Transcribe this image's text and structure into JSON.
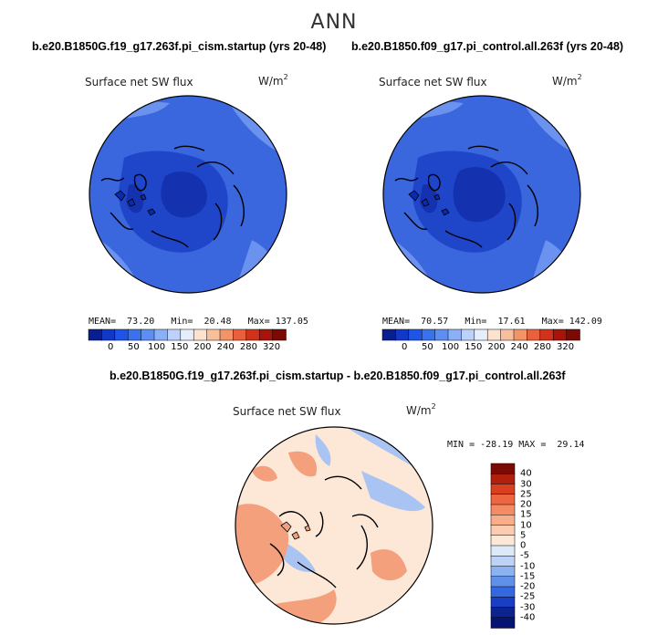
{
  "season": "ANN",
  "panels": [
    {
      "title": "b.e20.B1850G.f19_g17.263f.pi_cism.startup (yrs 20-48)",
      "variable": "Surface net SW flux",
      "units_base": "W/m",
      "units_exp": "2",
      "stats": {
        "mean_label": "MEAN=",
        "mean": "73.20",
        "min_label": "Min=",
        "min": "20.48",
        "max_label": "Max=",
        "max": "137.05"
      }
    },
    {
      "title": "b.e20.B1850.f09_g17.pi_control.all.263f (yrs 20-48)",
      "variable": "Surface net SW flux",
      "units_base": "W/m",
      "units_exp": "2",
      "stats": {
        "mean_label": "MEAN=",
        "mean": "70.57",
        "min_label": "Min=",
        "min": "17.61",
        "max_label": "Max=",
        "max": "142.09"
      }
    }
  ],
  "abs_colorbar": {
    "ticks": [
      "0",
      "50",
      "100",
      "150",
      "200",
      "240",
      "280",
      "320"
    ],
    "colors": [
      "#0a1f8f",
      "#1238c8",
      "#1f55e6",
      "#3a72ee",
      "#5d8ff2",
      "#8cb0f6",
      "#bdd2fa",
      "#e6eefc",
      "#fde3cf",
      "#f8bf9c",
      "#f29468",
      "#e8613a",
      "#d0321b",
      "#a8140a",
      "#7a0a04"
    ]
  },
  "diff": {
    "title": "b.e20.B1850G.f19_g17.263f.pi_cism.startup - b.e20.B1850.f09_g17.pi_control.all.263f",
    "variable": "Surface net SW flux",
    "units_base": "W/m",
    "units_exp": "2",
    "minmax": "MIN = -28.19 MAX =  29.14",
    "colorbar": {
      "levels": [
        "40",
        "30",
        "25",
        "20",
        "15",
        "10",
        "5",
        "0",
        "-5",
        "-10",
        "-15",
        "-20",
        "-25",
        "-30",
        "-40"
      ],
      "colors": [
        "#7a0a04",
        "#b0200d",
        "#d8401f",
        "#ee6640",
        "#f48b62",
        "#f8ae8a",
        "#fbccb0",
        "#fde8d8",
        "#dde9f8",
        "#bdd2f5",
        "#8db2f0",
        "#6090ea",
        "#3468e0",
        "#1a3fc4",
        "#0c2390",
        "#061370"
      ]
    }
  },
  "colors": {
    "abs_ocean": "#3a66de",
    "abs_dark": "#1f45c9",
    "abs_darker": "#1431b0",
    "abs_light": "#6a92ee",
    "diff_bg": "#fde8d8",
    "diff_warm": "#f4a07d",
    "diff_cool": "#a9c4f2"
  },
  "icons": {
    "map1": "polar-map-icon",
    "map2": "polar-map-icon",
    "map3": "polar-map-icon"
  }
}
